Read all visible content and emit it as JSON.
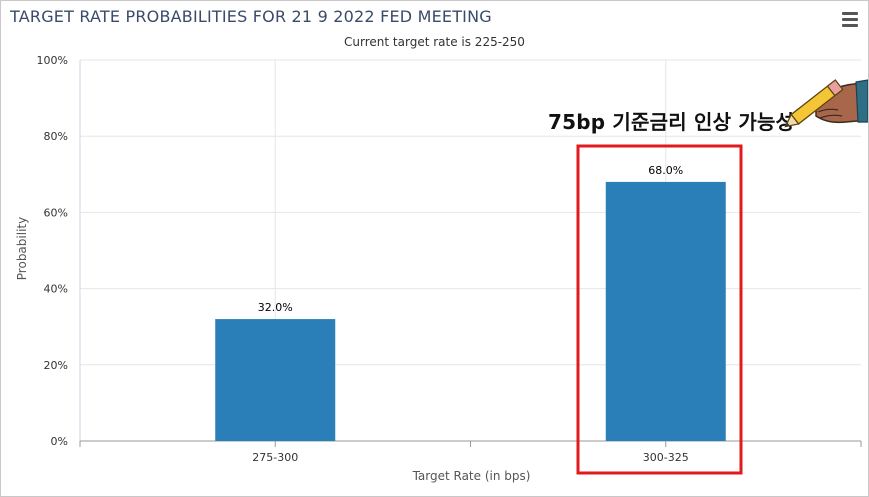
{
  "header": {
    "title": "TARGET RATE PROBABILITIES FOR 21 9 2022 FED MEETING",
    "subtitle": "Current target rate is 225-250",
    "menu_icon": "hamburger-menu-icon"
  },
  "annotation": {
    "text": "75bp 기준금리 인상 가능성",
    "highlight_color": "#e31a1c",
    "icon": "pencil-hand-icon"
  },
  "colors": {
    "bar": "#2b7fb8",
    "grid": "#e6e6e6",
    "axis": "#999999"
  },
  "chart_data": {
    "type": "bar",
    "categories": [
      "275-300",
      "300-325"
    ],
    "values": [
      32.0,
      68.0
    ],
    "data_labels": [
      "32.0%",
      "68.0%"
    ],
    "xlabel": "Target Rate (in bps)",
    "ylabel": "Probability",
    "ylim": [
      0,
      100
    ],
    "yticks": [
      "0%",
      "20%",
      "40%",
      "60%",
      "80%",
      "100%"
    ],
    "grid": true,
    "legend": "none"
  }
}
